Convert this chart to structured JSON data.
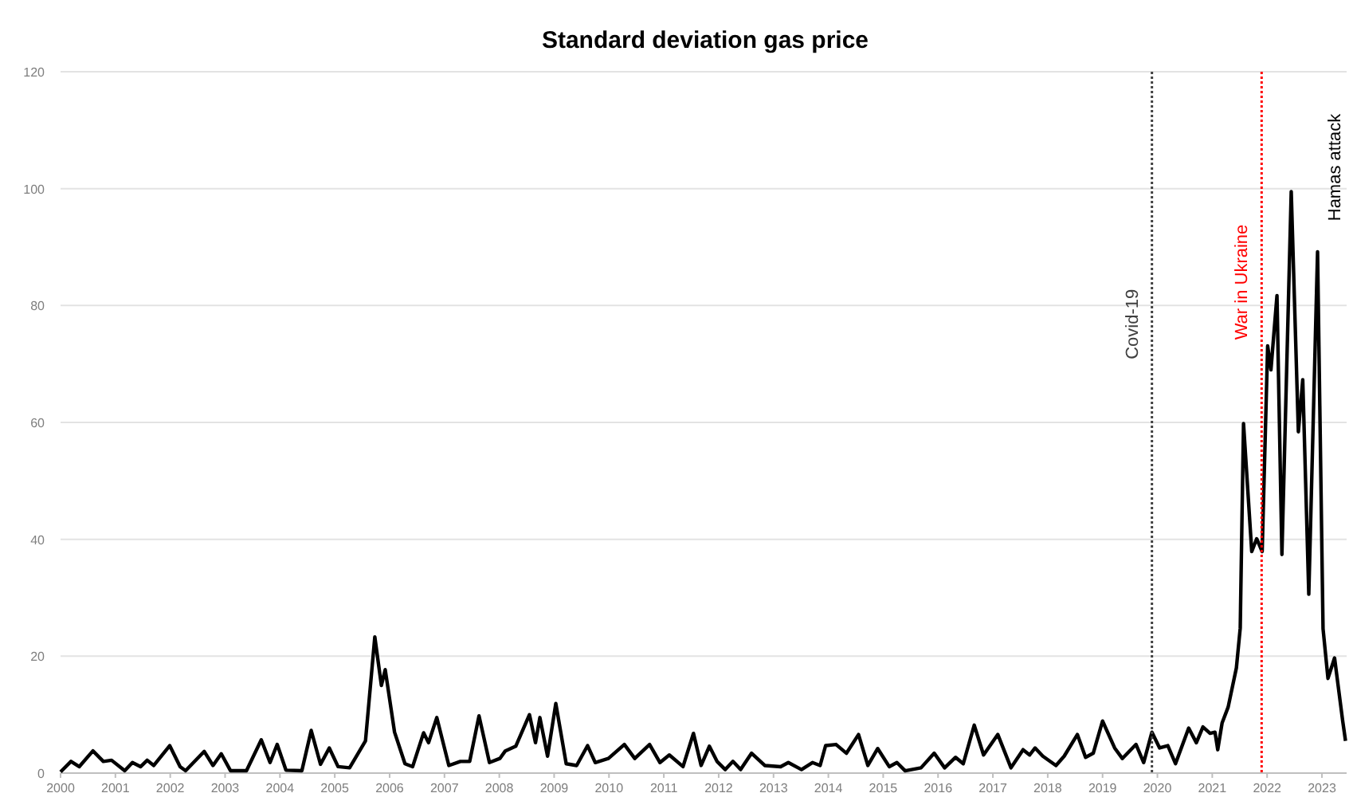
{
  "chart_data": {
    "type": "line",
    "title": "Standard deviation gas price",
    "xlim": [
      2000,
      2023.45
    ],
    "xticks": [
      2000,
      2001,
      2002,
      2003,
      2004,
      2005,
      2006,
      2007,
      2008,
      2009,
      2010,
      2011,
      2012,
      2013,
      2014,
      2015,
      2016,
      2017,
      2018,
      2019,
      2020,
      2021,
      2022,
      2023
    ],
    "ylim": [
      0,
      120
    ],
    "yticks": [
      0,
      20,
      40,
      60,
      80,
      100,
      120
    ],
    "grid": "y",
    "marker": "none",
    "line_style": "solid",
    "ref_lines": [
      {
        "axis": "x",
        "value": 2019.9,
        "label": "Covid-19",
        "color": "#404040",
        "line_style": "dotted"
      },
      {
        "axis": "x",
        "value": 2021.9,
        "label": "War in Ukraine",
        "color": "#ff0000",
        "line_style": "dotted"
      }
    ],
    "annotations": [
      "Hamas attack"
    ],
    "series": [
      {
        "color": "#000000",
        "x": [
          2000.0,
          2000.19,
          2000.34,
          2000.59,
          2000.78,
          2000.93,
          2001.17,
          2001.31,
          2001.46,
          2001.58,
          2001.7,
          2001.99,
          2002.18,
          2002.28,
          2002.62,
          2002.78,
          2002.93,
          2003.1,
          2003.39,
          2003.66,
          2003.82,
          2003.95,
          2004.11,
          2004.4,
          2004.57,
          2004.74,
          2004.9,
          2005.06,
          2005.27,
          2005.56,
          2005.73,
          2005.85,
          2005.92,
          2006.09,
          2006.28,
          2006.42,
          2006.62,
          2006.71,
          2006.86,
          2007.08,
          2007.29,
          2007.46,
          2007.63,
          2007.82,
          2008.01,
          2008.11,
          2008.3,
          2008.55,
          2008.66,
          2008.74,
          2008.88,
          2009.03,
          2009.22,
          2009.41,
          2009.61,
          2009.75,
          2009.99,
          2010.28,
          2010.47,
          2010.74,
          2010.93,
          2011.1,
          2011.35,
          2011.54,
          2011.68,
          2011.83,
          2011.97,
          2012.12,
          2012.26,
          2012.4,
          2012.6,
          2012.84,
          2013.13,
          2013.27,
          2013.51,
          2013.71,
          2013.85,
          2013.95,
          2014.14,
          2014.33,
          2014.55,
          2014.72,
          2014.9,
          2015.11,
          2015.25,
          2015.4,
          2015.69,
          2015.93,
          2016.12,
          2016.32,
          2016.46,
          2016.66,
          2016.83,
          2017.09,
          2017.33,
          2017.55,
          2017.67,
          2017.77,
          2017.91,
          2018.15,
          2018.3,
          2018.54,
          2018.69,
          2018.83,
          2019.0,
          2019.22,
          2019.36,
          2019.61,
          2019.75,
          2019.9,
          2020.04,
          2020.19,
          2020.33,
          2020.57,
          2020.71,
          2020.83,
          2020.96,
          2021.05,
          2021.1,
          2021.18,
          2021.29,
          2021.44,
          2021.51,
          2021.57,
          2021.72,
          2021.81,
          2021.91,
          2022.01,
          2022.07,
          2022.18,
          2022.27,
          2022.44,
          2022.57,
          2022.65,
          2022.76,
          2022.92,
          2023.02,
          2023.11,
          2023.23,
          2023.38,
          2023.43
        ],
        "values": [
          0.2,
          2.0,
          1.1,
          3.8,
          2.0,
          2.2,
          0.4,
          1.8,
          1.1,
          2.2,
          1.3,
          4.7,
          1.1,
          0.4,
          3.7,
          1.3,
          3.3,
          0.4,
          0.4,
          5.7,
          1.8,
          4.9,
          0.5,
          0.4,
          7.3,
          1.5,
          4.3,
          1.1,
          0.9,
          5.5,
          23.3,
          15.0,
          17.7,
          7.0,
          1.6,
          1.1,
          6.9,
          5.2,
          9.5,
          1.3,
          2.0,
          2.0,
          9.8,
          1.8,
          2.5,
          3.8,
          4.6,
          10.0,
          5.2,
          9.5,
          2.9,
          11.9,
          1.6,
          1.3,
          4.7,
          1.8,
          2.5,
          4.9,
          2.5,
          4.9,
          1.8,
          3.1,
          1.1,
          6.8,
          1.3,
          4.6,
          2.0,
          0.6,
          2.0,
          0.6,
          3.4,
          1.3,
          1.1,
          1.8,
          0.6,
          1.8,
          1.3,
          4.7,
          4.9,
          3.4,
          6.6,
          1.3,
          4.2,
          1.1,
          1.8,
          0.4,
          0.9,
          3.4,
          0.9,
          2.7,
          1.6,
          8.2,
          3.1,
          6.6,
          0.9,
          4.0,
          3.1,
          4.3,
          2.9,
          1.3,
          2.9,
          6.6,
          2.7,
          3.4,
          8.9,
          4.3,
          2.5,
          4.9,
          1.8,
          7.0,
          4.3,
          4.7,
          1.6,
          7.7,
          5.2,
          7.9,
          6.8,
          7.0,
          4.0,
          8.6,
          11.3,
          18.0,
          24.8,
          59.8,
          37.9,
          40.1,
          37.9,
          73.1,
          69.0,
          81.7,
          37.4,
          99.5,
          58.4,
          67.3,
          30.6,
          89.2,
          24.7,
          16.2,
          19.7,
          8.8,
          5.5
        ]
      }
    ]
  }
}
